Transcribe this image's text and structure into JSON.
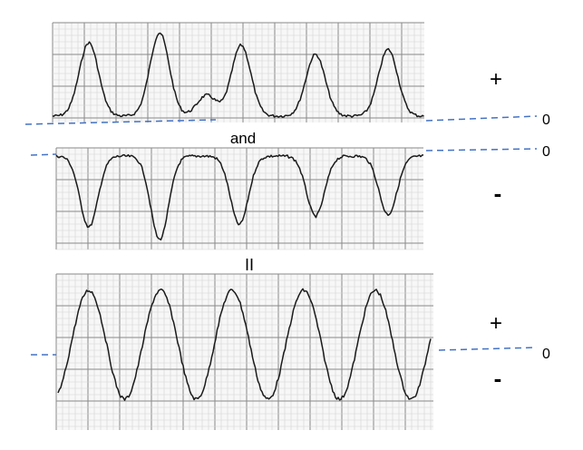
{
  "labels": {
    "plus_top": "+",
    "zero_top_1": "0",
    "and": "and",
    "zero_top_2": "0",
    "minus_middle": "-",
    "equals": "II",
    "plus_bottom": "+",
    "zero_bottom": "0",
    "minus_bottom": "-"
  },
  "colors": {
    "trace": "#1a1a1a",
    "grid_minor": "#d4d4d4",
    "grid_major": "#8a8a8a",
    "paper": "#f7f7f7",
    "zero_line": "#4472c4"
  }
}
